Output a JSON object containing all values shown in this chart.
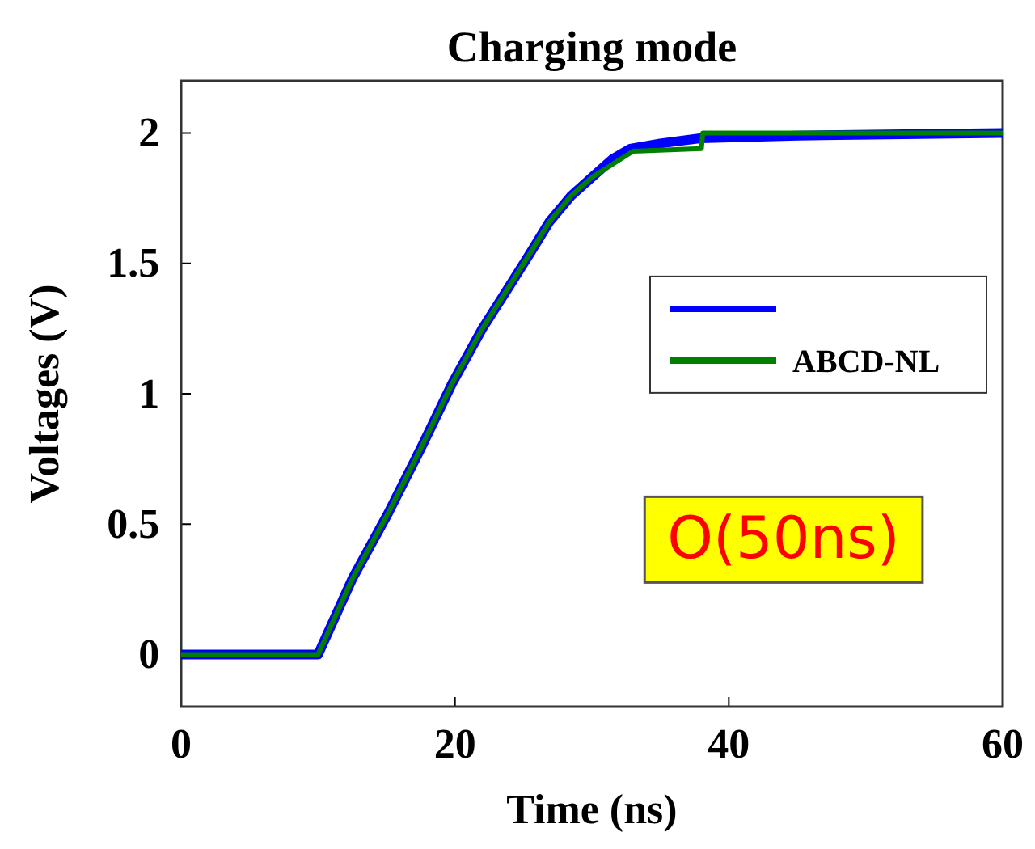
{
  "chart_data": {
    "type": "line",
    "title": "Charging mode",
    "xlabel": "Time (ns)",
    "ylabel": "Voltages (V)",
    "xlim": [
      0,
      60
    ],
    "xticks": [
      0,
      20,
      40,
      60
    ],
    "ylim": [
      -0.2,
      2.2
    ],
    "yticks": [
      0,
      0.5,
      1,
      1.5,
      2
    ],
    "grid": false,
    "legend": "right",
    "line_style": "solid",
    "marker": "none",
    "annotations": [
      "O(50ns)"
    ],
    "series": [
      {
        "color": "#0000ff",
        "x": [
          0,
          10,
          12.5,
          15.1,
          17.5,
          19.8,
          22,
          23.7,
          25.5,
          26.9,
          28.5,
          30,
          31.5,
          32.8,
          35,
          37.9,
          45,
          60
        ],
        "values": [
          0,
          0,
          0.29,
          0.54,
          0.79,
          1.04,
          1.25,
          1.39,
          1.54,
          1.66,
          1.76,
          1.83,
          1.9,
          1.94,
          1.96,
          1.98,
          1.99,
          2.0
        ]
      },
      {
        "name": "ABCD-NL",
        "color": "#008000",
        "x": [
          0,
          10,
          12.5,
          15.1,
          17.5,
          19.8,
          22,
          23.7,
          25.5,
          26.9,
          28.5,
          30,
          31.5,
          33,
          38,
          38.1,
          60
        ],
        "values": [
          0,
          0,
          0.29,
          0.54,
          0.79,
          1.04,
          1.25,
          1.39,
          1.54,
          1.66,
          1.76,
          1.83,
          1.88,
          1.93,
          1.94,
          2.0,
          2.0
        ]
      }
    ]
  }
}
